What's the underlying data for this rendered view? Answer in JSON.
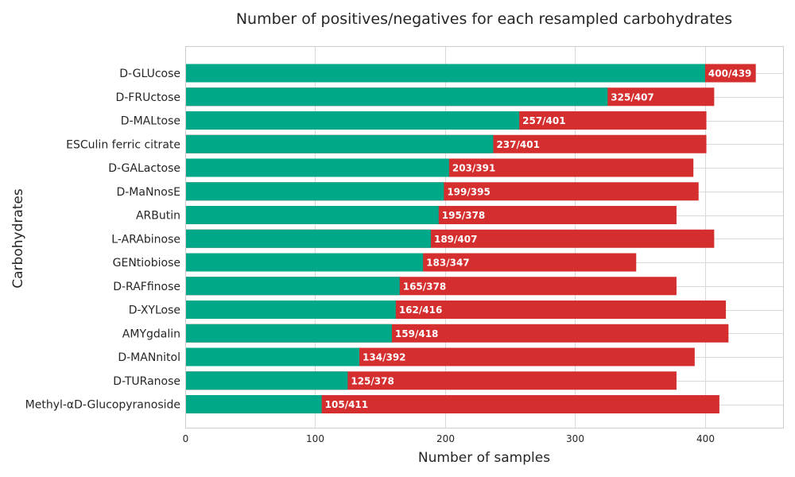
{
  "colors": {
    "positive": "#00a88a",
    "negative": "#d42e2e"
  },
  "chart_data": {
    "type": "bar",
    "orientation": "horizontal",
    "stacked": false,
    "title": "Number of positives/negatives for each resampled carbohydrates",
    "xlabel": "Number of samples",
    "ylabel": "Carbohydrates",
    "xlim": [
      0,
      460
    ],
    "xticks": [
      0,
      100,
      200,
      300,
      400
    ],
    "grid": true,
    "legend": "none",
    "categories": [
      "D-GLUcose",
      "D-FRUctose",
      "D-MALtose",
      "ESCulin ferric citrate",
      "D-GALactose",
      "D-MaNnosE",
      "ARButin",
      "L-ARAbinose",
      "GENtiobiose",
      "D-RAFfinose",
      "D-XYLose",
      "AMYgdalin",
      "D-MANnitol",
      "D-TURanose",
      "Methyl-αD-Glucopyranoside"
    ],
    "series": [
      {
        "values": [
          400,
          325,
          257,
          237,
          203,
          199,
          195,
          189,
          183,
          165,
          162,
          159,
          134,
          125,
          105
        ]
      },
      {
        "values": [
          439,
          407,
          401,
          401,
          391,
          395,
          378,
          407,
          347,
          378,
          416,
          418,
          392,
          378,
          411
        ]
      }
    ],
    "bar_labels": [
      "400/439",
      "325/407",
      "257/401",
      "237/401",
      "203/391",
      "199/395",
      "195/378",
      "189/407",
      "183/347",
      "165/378",
      "162/416",
      "159/418",
      "134/392",
      "125/378",
      "105/411"
    ]
  }
}
